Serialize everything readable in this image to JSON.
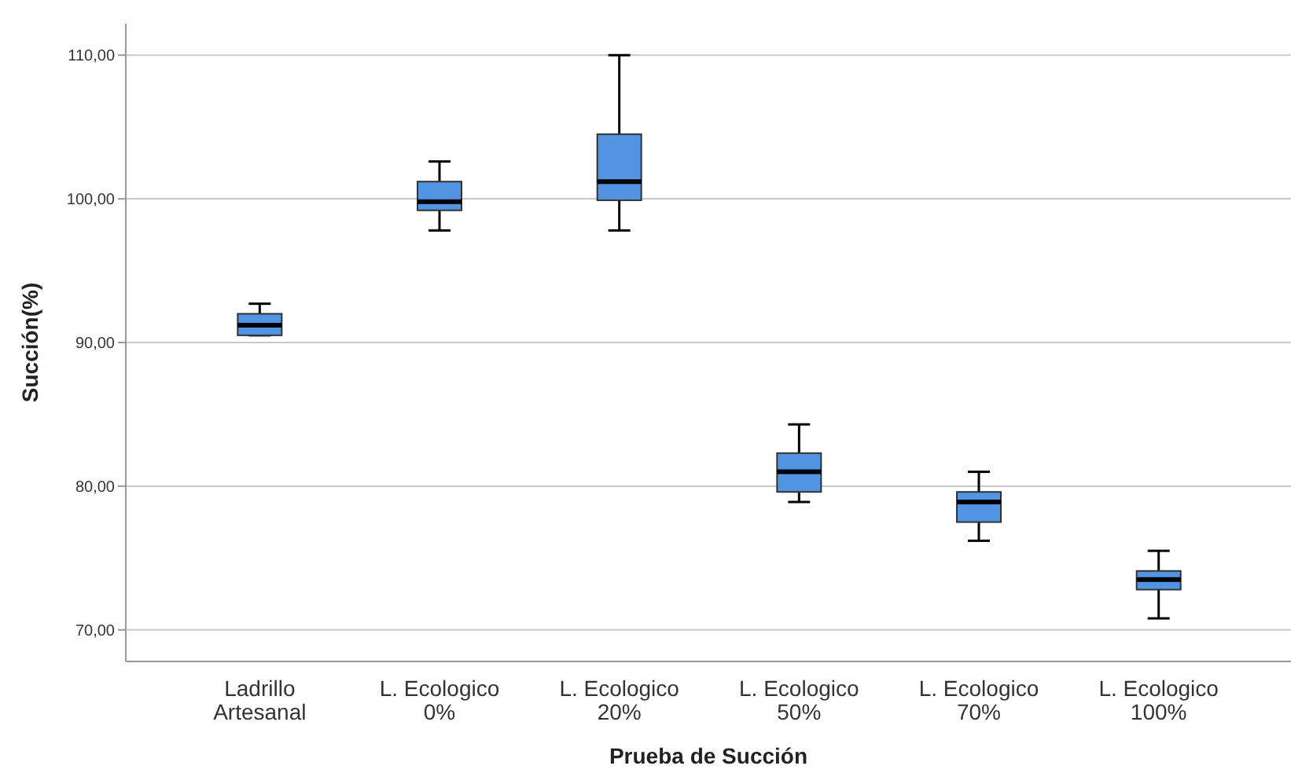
{
  "chart_data": {
    "type": "box",
    "xlabel": "Prueba de Succión",
    "ylabel": "Succión(%)",
    "categories": [
      "Ladrillo\nArtesanal",
      "L. Ecologico\n0%",
      "L. Ecologico\n20%",
      "L. Ecologico\n50%",
      "L. Ecologico\n70%",
      "L. Ecologico\n100%"
    ],
    "boxes": [
      {
        "low": 90.5,
        "q1": 90.5,
        "median": 91.2,
        "q3": 92.0,
        "high": 92.7
      },
      {
        "low": 97.8,
        "q1": 99.2,
        "median": 99.8,
        "q3": 101.2,
        "high": 102.6
      },
      {
        "low": 97.8,
        "q1": 99.9,
        "median": 101.2,
        "q3": 104.5,
        "high": 110.0
      },
      {
        "low": 78.9,
        "q1": 79.6,
        "median": 81.0,
        "q3": 82.3,
        "high": 84.3
      },
      {
        "low": 76.2,
        "q1": 77.5,
        "median": 78.9,
        "q3": 79.6,
        "high": 81.0
      },
      {
        "low": 70.8,
        "q1": 72.8,
        "median": 73.5,
        "q3": 74.1,
        "high": 75.5
      }
    ],
    "color": "#5294e2",
    "ylim": [
      67.8,
      112.2
    ],
    "yticks": [
      {
        "value": 70,
        "label": "70,00"
      },
      {
        "value": 80,
        "label": "80,00"
      },
      {
        "value": 90,
        "label": "90,00"
      },
      {
        "value": 100,
        "label": "100,00"
      },
      {
        "value": 110,
        "label": "110,00"
      }
    ],
    "grid": "y"
  }
}
